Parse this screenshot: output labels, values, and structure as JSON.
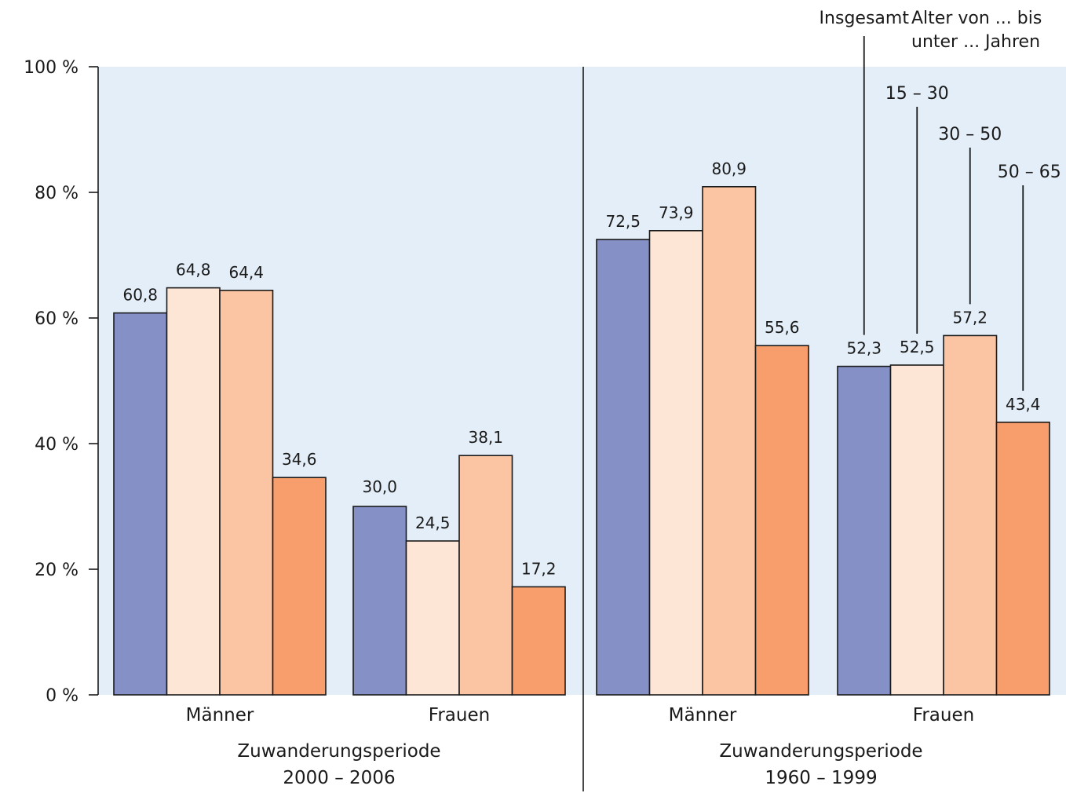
{
  "chart_data": {
    "type": "bar",
    "ylim": [
      0,
      100
    ],
    "y_ticks": [
      {
        "value": 0,
        "label": "0 %"
      },
      {
        "value": 20,
        "label": "20 %"
      },
      {
        "value": 40,
        "label": "40 %"
      },
      {
        "value": 60,
        "label": "60 %"
      },
      {
        "value": 80,
        "label": "80 %"
      },
      {
        "value": 100,
        "label": "100 %"
      }
    ],
    "legend": {
      "heading": [
        "Alter von ... bis",
        "unter ... Jahren"
      ]
    },
    "series": [
      {
        "name": "Insgesamt",
        "color": "#8590c6"
      },
      {
        "name": "15 – 30",
        "color": "#fde6d6"
      },
      {
        "name": "30 – 50",
        "color": "#fbc5a3"
      },
      {
        "name": "50 – 65",
        "color": "#f89e6c"
      }
    ],
    "panels": [
      {
        "group_label": [
          "Zuwanderungsperiode",
          "2000 – 2006"
        ],
        "categories": [
          {
            "label": "Männer",
            "values": [
              60.8,
              64.8,
              64.4,
              34.6
            ],
            "value_labels": [
              "60,8",
              "64,8",
              "64,4",
              "34,6"
            ]
          },
          {
            "label": "Frauen",
            "values": [
              30.0,
              24.5,
              38.1,
              17.2
            ],
            "value_labels": [
              "30,0",
              "24,5",
              "38,1",
              "17,2"
            ]
          }
        ]
      },
      {
        "group_label": [
          "Zuwanderungsperiode",
          "1960 – 1999"
        ],
        "categories": [
          {
            "label": "Männer",
            "values": [
              72.5,
              73.9,
              80.9,
              55.6
            ],
            "value_labels": [
              "72,5",
              "73,9",
              "80,9",
              "55,6"
            ]
          },
          {
            "label": "Frauen",
            "values": [
              52.3,
              52.5,
              57.2,
              43.4
            ],
            "value_labels": [
              "52,3",
              "52,5",
              "57,2",
              "43,4"
            ]
          }
        ]
      }
    ],
    "colors": {
      "plot_background": "#e3eef8",
      "axis": "#1a1a1a"
    }
  }
}
